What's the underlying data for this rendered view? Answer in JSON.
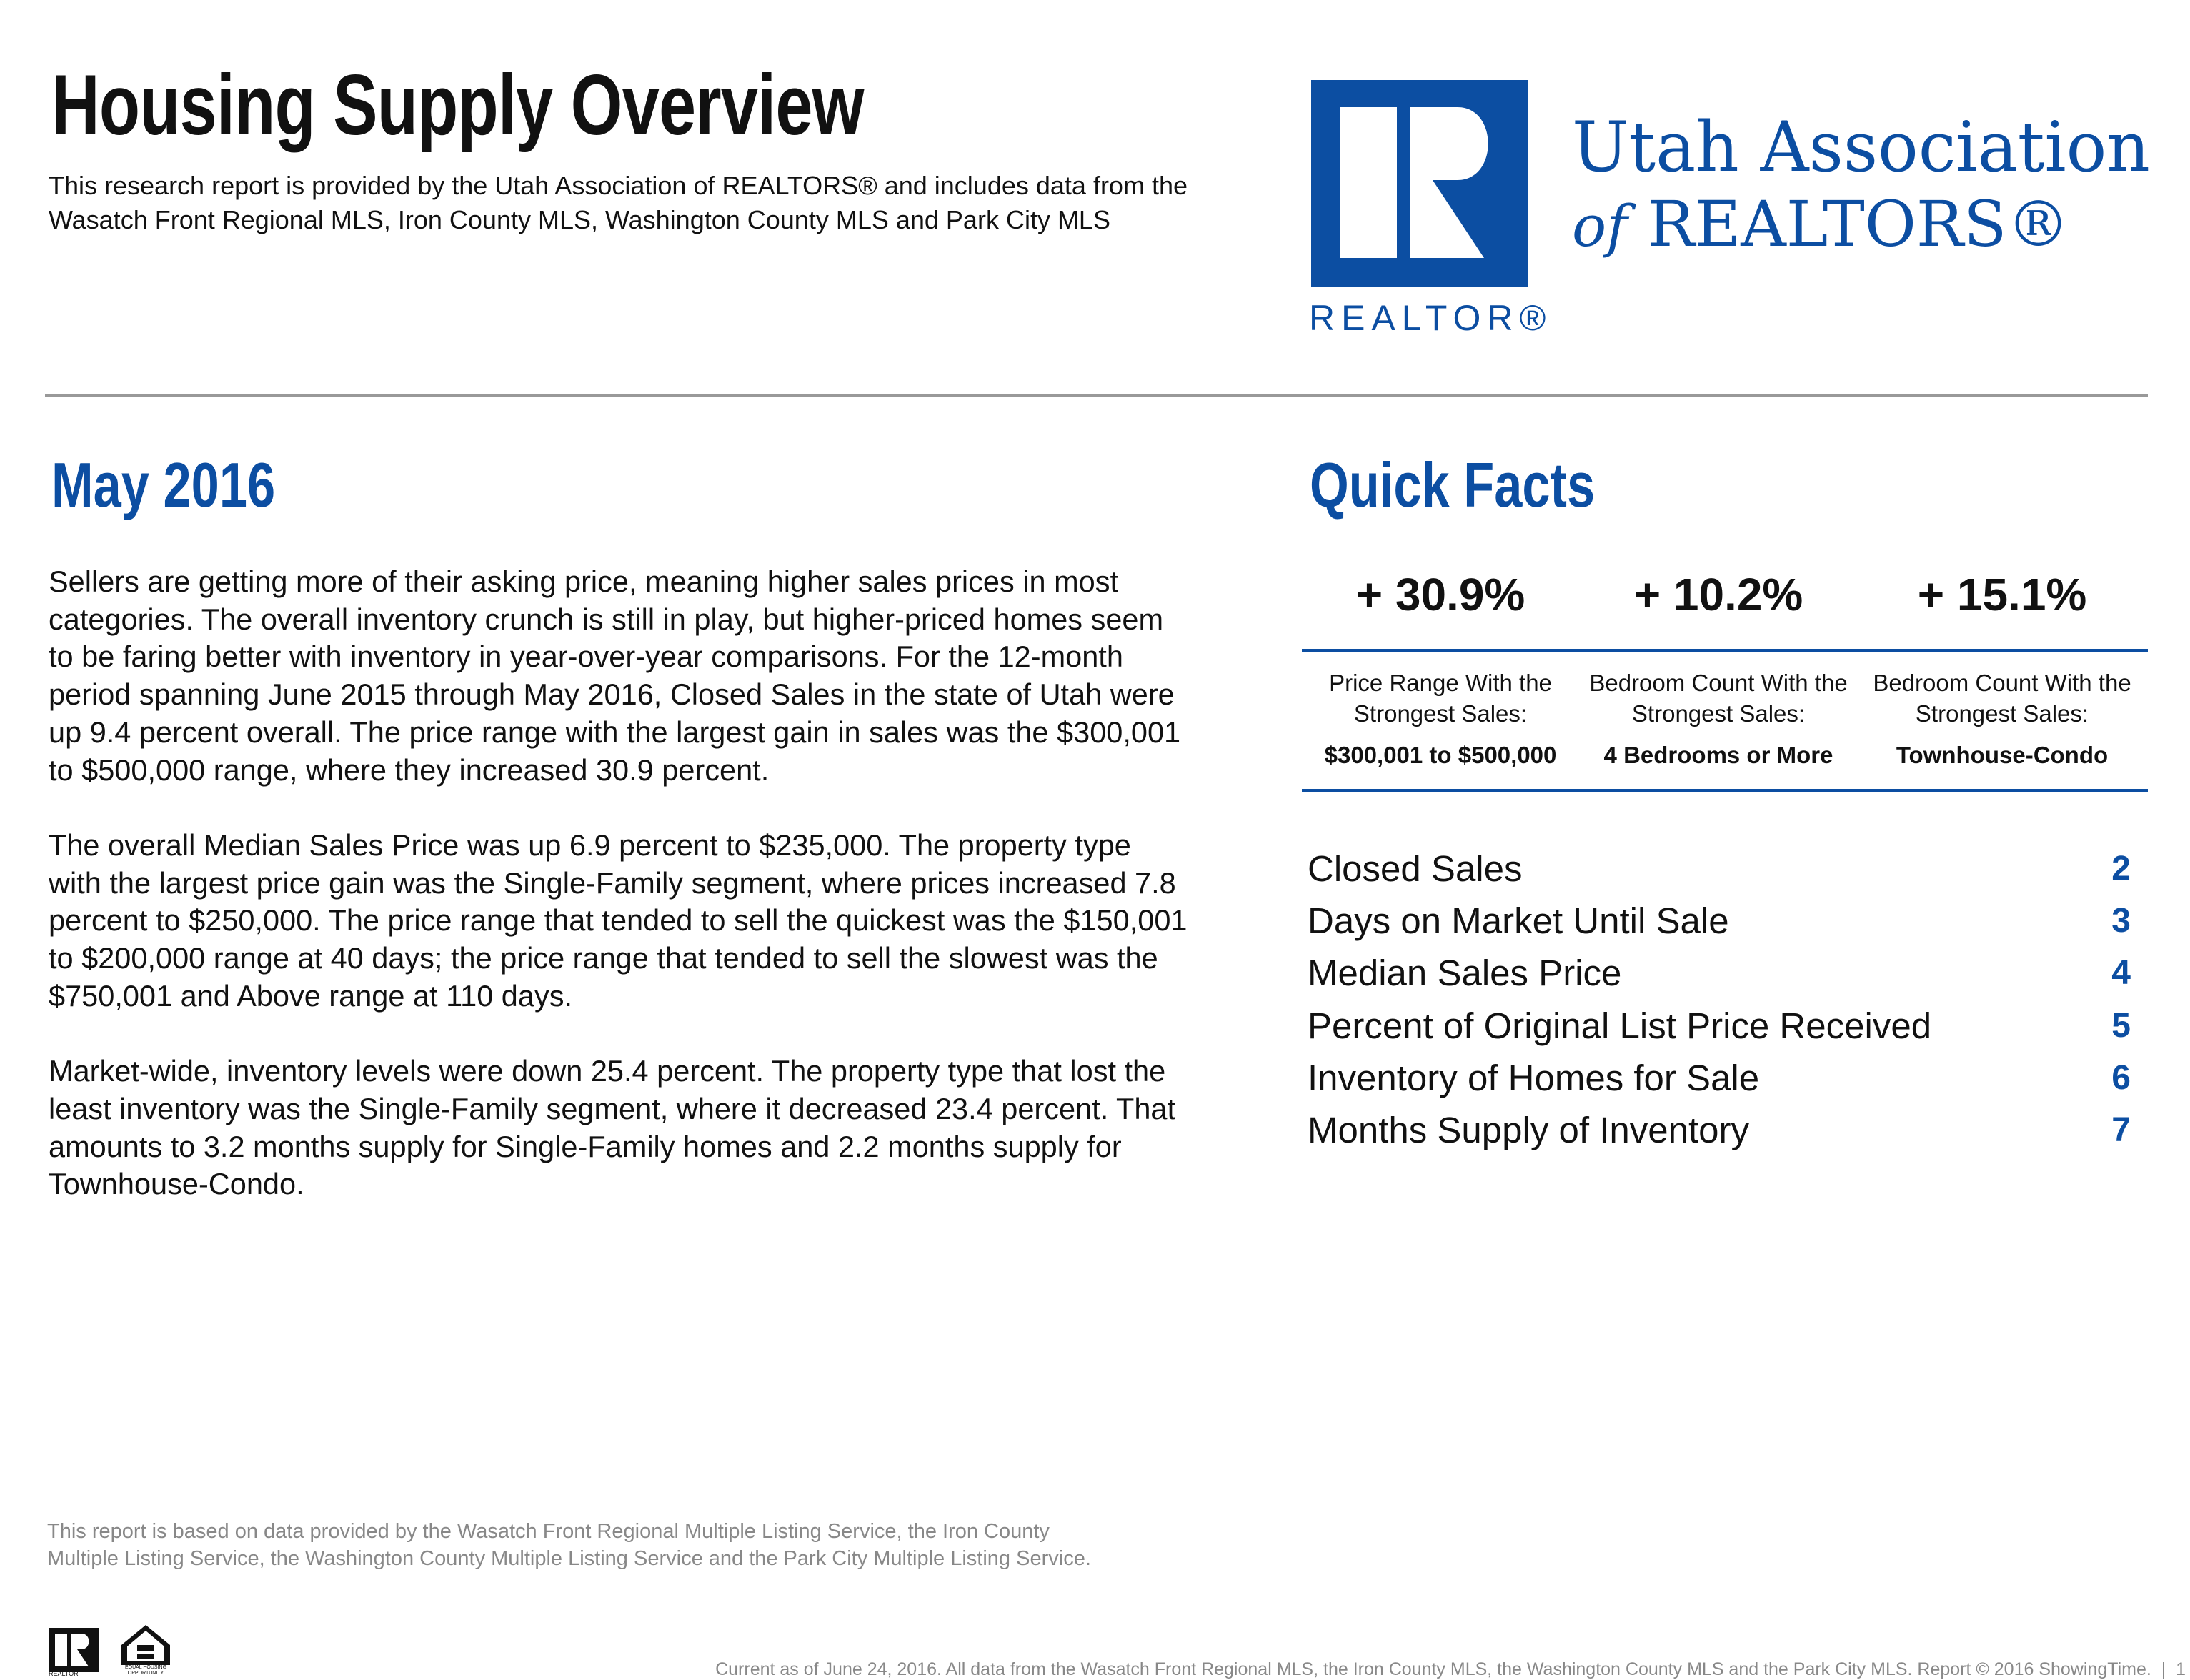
{
  "header": {
    "title": "Housing Supply Overview",
    "intro": "This research report is provided by the Utah Association of REALTORS® and includes data from the Wasatch Front Regional MLS, Iron County MLS, Washington County MLS and Park City MLS",
    "logo": {
      "mark_text": "REALTOR®",
      "org_line1": "Utah Association",
      "org_of": "of",
      "org_line2": "REALTORS®",
      "brand_color": "#0c4ea2"
    }
  },
  "main": {
    "month": "May 2016",
    "paragraphs": [
      "Sellers are getting more of their asking price, meaning higher sales prices in most categories. The overall inventory crunch is still in play, but higher-priced homes seem to be faring better with inventory in year-over-year comparisons. For the 12-month period spanning June 2015 through May 2016, Closed Sales in the state of Utah were up 9.4 percent overall. The price range with the largest gain in sales was the $300,001 to $500,000 range, where they increased 30.9 percent.",
      "The overall Median Sales Price was up 6.9 percent to $235,000. The property type with the largest price gain was the Single-Family segment, where prices increased 7.8 percent to $250,000. The price range that tended to sell the quickest was the $150,001 to $200,000 range at 40 days; the price range that tended to sell the slowest was the $750,001 and Above range at 110 days.",
      "Market-wide, inventory levels were down 25.4 percent. The property type that lost the least inventory was the Single-Family segment, where it decreased 23.4 percent. That amounts to 3.2 months supply for Single-Family homes and 2.2 months supply for Townhouse-Condo."
    ]
  },
  "quick_facts": {
    "title": "Quick Facts",
    "facts": [
      {
        "stat": "+ 30.9%",
        "label": "Price Range With the Strongest Sales:",
        "value": "$300,001 to $500,000"
      },
      {
        "stat": "+ 10.2%",
        "label": "Bedroom Count With the Strongest Sales:",
        "value": "4 Bedrooms or More"
      },
      {
        "stat": "+ 15.1%",
        "label": "Bedroom Count With the Strongest Sales:",
        "value": "Townhouse-Condo"
      }
    ],
    "toc": [
      {
        "label": "Closed Sales",
        "page": "2"
      },
      {
        "label": "Days on Market Until Sale",
        "page": "3"
      },
      {
        "label": "Median Sales Price",
        "page": "4"
      },
      {
        "label": "Percent of Original List Price Received",
        "page": "5"
      },
      {
        "label": "Inventory of Homes for Sale",
        "page": "6"
      },
      {
        "label": "Months Supply of Inventory",
        "page": "7"
      }
    ]
  },
  "footer": {
    "note_line1": "This report is based on data provided by the Wasatch Front Regional Multiple Listing Service, the Iron County",
    "note_line2": "Multiple Listing Service, the Washington County Multiple Listing Service and the Park City Multiple Listing Service.",
    "current": "Current as of June 24, 2016. All data from the Wasatch Front Regional MLS, the Iron County MLS, the Washington County MLS and the Park City MLS. Report © 2016 ShowingTime.",
    "page": "1",
    "realtor_small": "REALTOR",
    "eho_small": "EQUAL HOUSING OPPORTUNITY"
  }
}
